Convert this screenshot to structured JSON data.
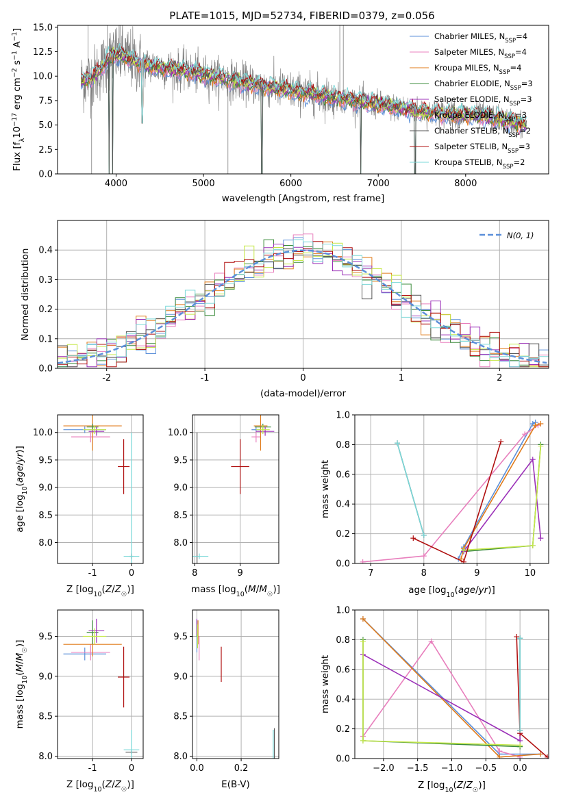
{
  "figure_title": "PLATE=1015, MJD=52734, FIBERID=0379, z=0.056",
  "colors": {
    "chabrier_miles": "#5b8fd9",
    "salpeter_miles": "#e87fbd",
    "kroupa_miles": "#e07b1a",
    "chabrier_elodie": "#3c8c3c",
    "salpeter_elodie": "#9b30b8",
    "kroupa_elodie": "#c6e84a",
    "chabrier_stelib": "#555555",
    "salpeter_stelib": "#b01010",
    "kroupa_stelib": "#7ad8d8",
    "data": "#7f7f7f",
    "normal": "#5b8fd9",
    "grid": "#b0b0b0"
  },
  "chart_data": [
    {
      "id": "spectrum",
      "type": "line",
      "xlabel": "wavelength [Angstrom, rest frame]",
      "ylabel": "Flux [f_λ 10^-17 erg cm^-2 s^-1 A^-1]",
      "xlim": [
        3330,
        8950
      ],
      "ylim": [
        0,
        15.2
      ],
      "xticks": [
        4000,
        5000,
        6000,
        7000,
        8000
      ],
      "yticks": [
        0.0,
        2.5,
        5.0,
        7.5,
        10.0,
        12.5,
        15.0
      ],
      "grid": false,
      "legend_position": "top-right",
      "legend": [
        {
          "main": "Chabrier MILES, N",
          "sub": "SSP",
          "tail": "=4",
          "color_key": "chabrier_miles"
        },
        {
          "main": "Salpeter MILES, N",
          "sub": "SSP",
          "tail": "=4",
          "color_key": "salpeter_miles"
        },
        {
          "main": "Kroupa MILES, N",
          "sub": "SSP",
          "tail": "=4",
          "color_key": "kroupa_miles"
        },
        {
          "main": "Chabrier ELODIE, N",
          "sub": "SSP",
          "tail": "=3",
          "color_key": "chabrier_elodie"
        },
        {
          "main": "Salpeter ELODIE, N",
          "sub": "SSP",
          "tail": "=3",
          "color_key": "salpeter_elodie"
        },
        {
          "main": "Kroupa ELODIE, N",
          "sub": "SSP",
          "tail": "=3",
          "color_key": "kroupa_elodie"
        },
        {
          "main": "Chabrier STELIB, N",
          "sub": "SSP",
          "tail": "=2",
          "color_key": "chabrier_stelib"
        },
        {
          "main": "Salpeter STELIB, N",
          "sub": "SSP",
          "tail": "=3",
          "color_key": "salpeter_stelib"
        },
        {
          "main": "Kroupa STELIB, N",
          "sub": "SSP",
          "tail": "=2",
          "color_key": "kroupa_stelib"
        }
      ],
      "continuum": [
        [
          3600,
          9.4
        ],
        [
          3750,
          10.0
        ],
        [
          3850,
          11.0
        ],
        [
          3950,
          12.2
        ],
        [
          4100,
          12.0
        ],
        [
          4300,
          11.2
        ],
        [
          4500,
          10.9
        ],
        [
          4800,
          10.5
        ],
        [
          5200,
          9.8
        ],
        [
          5600,
          9.1
        ],
        [
          6000,
          8.5
        ],
        [
          6500,
          7.8
        ],
        [
          7000,
          7.1
        ],
        [
          7400,
          6.5
        ],
        [
          7800,
          6.1
        ],
        [
          8200,
          5.9
        ],
        [
          8700,
          5.0
        ]
      ],
      "data_x_range": [
        3600,
        8650
      ],
      "model_x_range": [
        3600,
        8700
      ],
      "data_spikes": [
        [
          3680,
          15.2
        ],
        [
          3720,
          0.0
        ],
        [
          3900,
          15.2
        ],
        [
          4050,
          15.2
        ],
        [
          5280,
          0.0
        ],
        [
          6560,
          15.2
        ],
        [
          6600,
          15.2
        ],
        [
          7430,
          0.0
        ]
      ],
      "model_dips": [
        [
          3920,
          0.0
        ],
        [
          3960,
          0.0
        ],
        [
          4300,
          5.2
        ],
        [
          5670,
          0.0
        ],
        [
          6800,
          0.0
        ],
        [
          7420,
          0.0
        ]
      ]
    },
    {
      "id": "residual-histogram",
      "type": "line",
      "xlabel": "(data-model)/error",
      "ylabel": "Normed distribution",
      "xlim": [
        -2.5,
        2.5
      ],
      "ylim": [
        0,
        0.5
      ],
      "xticks": [
        -2,
        -1,
        0,
        1,
        2
      ],
      "yticks": [
        0.0,
        0.1,
        0.2,
        0.3,
        0.4
      ],
      "grid": true,
      "legend_position": "top-right",
      "normal_label": "N(0, 1)",
      "normal": {
        "mean": 0,
        "sigma": 1
      },
      "bin_width": 0.1,
      "histogram_note": "nine step histograms that scatter around the N(0,1) curve"
    },
    {
      "id": "age-vs-Z",
      "type": "scatter",
      "xlabel": "Z [log10(Z/Z☉)]",
      "ylabel": "age [log10(age/yr)]",
      "xlim": [
        -1.9,
        0.3
      ],
      "ylim": [
        7.62,
        10.32
      ],
      "xticks": [
        -1,
        0
      ],
      "yticks": [
        8.0,
        8.5,
        9.0,
        9.5,
        10.0
      ],
      "grid": true,
      "points": [
        {
          "key": "chabrier_miles",
          "x": -1.2,
          "y": 10.05,
          "xerr": 0.55,
          "yerr": 0.06
        },
        {
          "key": "salpeter_miles",
          "x": -1.05,
          "y": 9.92,
          "xerr": 0.5,
          "yerr": 0.1
        },
        {
          "key": "kroupa_miles",
          "x": -1.0,
          "y": 10.12,
          "xerr": 0.75,
          "yerr": 0.45
        },
        {
          "key": "chabrier_elodie",
          "x": -1.0,
          "y": 10.1,
          "xerr": 0.15,
          "yerr": 0.06
        },
        {
          "key": "salpeter_elodie",
          "x": -0.9,
          "y": 10.02,
          "xerr": 0.2,
          "yerr": 0.08
        },
        {
          "key": "kroupa_elodie",
          "x": -0.95,
          "y": 10.05,
          "xerr": 0.3,
          "yerr": 0.08
        },
        {
          "key": "chabrier_stelib",
          "x": 0.0,
          "y": 7.75,
          "xerr": 0.05,
          "yerr": 0.05
        },
        {
          "key": "salpeter_stelib",
          "x": -0.2,
          "y": 9.38,
          "xerr": 0.15,
          "yerr": 0.5
        },
        {
          "key": "kroupa_stelib",
          "x": 0.0,
          "y": 7.75,
          "xerr": 0.2,
          "yerr": 2.25
        }
      ]
    },
    {
      "id": "age-vs-mass",
      "type": "scatter",
      "xlabel": "mass [log10(M/M☉)]",
      "ylabel": "",
      "xlim": [
        7.95,
        9.85
      ],
      "ylim": [
        7.62,
        10.32
      ],
      "xticks": [
        8,
        9
      ],
      "yticks": [
        8.0,
        8.5,
        9.0,
        9.5,
        10.0
      ],
      "grid": true,
      "points": [
        {
          "key": "chabrier_miles",
          "x": 9.35,
          "y": 10.05,
          "xerr": 0.1,
          "yerr": 0.06
        },
        {
          "key": "salpeter_miles",
          "x": 9.35,
          "y": 9.92,
          "xerr": 0.1,
          "yerr": 0.1
        },
        {
          "key": "kroupa_miles",
          "x": 9.45,
          "y": 10.12,
          "xerr": 0.15,
          "yerr": 0.45
        },
        {
          "key": "chabrier_elodie",
          "x": 9.5,
          "y": 10.1,
          "xerr": 0.18,
          "yerr": 0.06
        },
        {
          "key": "salpeter_elodie",
          "x": 9.55,
          "y": 10.02,
          "xerr": 0.2,
          "yerr": 0.08
        },
        {
          "key": "kroupa_elodie",
          "x": 9.5,
          "y": 10.05,
          "xerr": 0.15,
          "yerr": 0.08
        },
        {
          "key": "chabrier_stelib",
          "x": 8.05,
          "y": 7.75,
          "xerr": 0.03,
          "yerr": 2.25
        },
        {
          "key": "salpeter_stelib",
          "x": 9.0,
          "y": 9.38,
          "xerr": 0.2,
          "yerr": 0.5
        },
        {
          "key": "kroupa_stelib",
          "x": 8.1,
          "y": 7.75,
          "xerr": 0.2,
          "yerr": 0.05
        }
      ]
    },
    {
      "id": "mass-weight-vs-age",
      "type": "line",
      "xlabel": "age [log10(age/yr)]",
      "ylabel": "mass weight",
      "xlim": [
        6.7,
        10.35
      ],
      "ylim": [
        0,
        1.0
      ],
      "xticks": [
        7,
        8,
        9,
        10
      ],
      "yticks": [
        0.0,
        0.2,
        0.4,
        0.6,
        0.8,
        1.0
      ],
      "grid": true,
      "series": [
        {
          "key": "chabrier_miles",
          "x": [
            8.65,
            8.75,
            10.05,
            10.1
          ],
          "y": [
            0.03,
            0.11,
            0.94,
            0.95
          ]
        },
        {
          "key": "salpeter_miles",
          "x": [
            6.85,
            8.0,
            9.9,
            10.15
          ],
          "y": [
            0.01,
            0.05,
            0.87,
            0.93
          ]
        },
        {
          "key": "kroupa_miles",
          "x": [
            8.7,
            8.75,
            10.1,
            10.2
          ],
          "y": [
            0.03,
            0.1,
            0.93,
            0.94
          ]
        },
        {
          "key": "chabrier_elodie",
          "x": [
            8.75,
            10.05,
            10.2
          ],
          "y": [
            0.08,
            0.12,
            0.8
          ]
        },
        {
          "key": "salpeter_elodie",
          "x": [
            8.75,
            10.05,
            10.2
          ],
          "y": [
            0.08,
            0.7,
            0.17
          ]
        },
        {
          "key": "kroupa_elodie",
          "x": [
            8.75,
            10.05,
            10.2
          ],
          "y": [
            0.09,
            0.12,
            0.79
          ]
        },
        {
          "key": "chabrier_stelib",
          "x": [
            7.5,
            8.0
          ],
          "y": [
            0.81,
            0.19
          ]
        },
        {
          "key": "salpeter_stelib",
          "x": [
            7.8,
            8.75,
            9.45
          ],
          "y": [
            0.17,
            0.01,
            0.82
          ]
        },
        {
          "key": "kroupa_stelib",
          "x": [
            7.5,
            8.0
          ],
          "y": [
            0.81,
            0.19
          ]
        }
      ]
    },
    {
      "id": "mass-vs-Z",
      "type": "scatter",
      "xlabel": "Z [log10(Z/Z☉)]",
      "ylabel": "mass [log10(M/M☉)]",
      "xlim": [
        -1.9,
        0.3
      ],
      "ylim": [
        7.97,
        9.83
      ],
      "xticks": [
        -1,
        0
      ],
      "yticks": [
        8.0,
        8.5,
        9.0,
        9.5
      ],
      "grid": true,
      "points": [
        {
          "key": "chabrier_miles",
          "x": -1.2,
          "y": 9.28,
          "xerr": 0.55,
          "yerr": 0.08
        },
        {
          "key": "salpeter_miles",
          "x": -1.05,
          "y": 9.3,
          "xerr": 0.5,
          "yerr": 0.1
        },
        {
          "key": "kroupa_miles",
          "x": -1.0,
          "y": 9.4,
          "xerr": 0.75,
          "yerr": 0.15
        },
        {
          "key": "chabrier_elodie",
          "x": -1.0,
          "y": 9.55,
          "xerr": 0.15,
          "yerr": 0.15
        },
        {
          "key": "salpeter_elodie",
          "x": -0.9,
          "y": 9.57,
          "xerr": 0.2,
          "yerr": 0.15
        },
        {
          "key": "kroupa_elodie",
          "x": -0.95,
          "y": 9.5,
          "xerr": 0.3,
          "yerr": 0.1
        },
        {
          "key": "chabrier_stelib",
          "x": 0.0,
          "y": 8.05,
          "xerr": 0.15,
          "yerr": 0.02
        },
        {
          "key": "salpeter_stelib",
          "x": -0.2,
          "y": 8.99,
          "xerr": 0.15,
          "yerr": 0.38
        },
        {
          "key": "kroupa_stelib",
          "x": 0.0,
          "y": 8.08,
          "xerr": 0.2,
          "yerr": 0.25
        }
      ]
    },
    {
      "id": "mass-vs-EBV",
      "type": "scatter",
      "xlabel": "E(B-V)",
      "ylabel": "",
      "xlim": [
        -0.02,
        0.37
      ],
      "ylim": [
        7.97,
        9.83
      ],
      "xticks": [
        0.0,
        0.2
      ],
      "yticks": [
        8.0,
        8.5,
        9.0,
        9.5
      ],
      "grid": true,
      "points": [
        {
          "key": "chabrier_miles",
          "x": 0.0,
          "y": 9.5,
          "xerr": 0.0,
          "yerr": 0.2
        },
        {
          "key": "salpeter_miles",
          "x": 0.01,
          "y": 9.35,
          "xerr": 0.0,
          "yerr": 0.15
        },
        {
          "key": "kroupa_miles",
          "x": 0.005,
          "y": 9.55,
          "xerr": 0.0,
          "yerr": 0.15
        },
        {
          "key": "chabrier_elodie",
          "x": 0.0,
          "y": 9.6,
          "xerr": 0.0,
          "yerr": 0.1
        },
        {
          "key": "salpeter_elodie",
          "x": 0.0,
          "y": 9.62,
          "xerr": 0.0,
          "yerr": 0.1
        },
        {
          "key": "kroupa_elodie",
          "x": 0.003,
          "y": 9.5,
          "xerr": 0.0,
          "yerr": 0.15
        },
        {
          "key": "chabrier_stelib",
          "x": 0.35,
          "y": 8.05,
          "xerr": 0.0,
          "yerr": 0.3
        },
        {
          "key": "salpeter_stelib",
          "x": 0.11,
          "y": 9.15,
          "xerr": 0.0,
          "yerr": 0.22
        },
        {
          "key": "kroupa_stelib",
          "x": 0.345,
          "y": 8.08,
          "xerr": 0.0,
          "yerr": 0.25
        }
      ]
    },
    {
      "id": "mass-weight-vs-Z",
      "type": "line",
      "xlabel": "Z [log10(Z/Z☉)]",
      "ylabel": "mass weight",
      "xlim": [
        -2.42,
        0.42
      ],
      "ylim": [
        0,
        1.0
      ],
      "xticks": [
        -2.0,
        -1.5,
        -1.0,
        -0.5,
        0.0
      ],
      "yticks": [
        0.0,
        0.2,
        0.4,
        0.6,
        0.8,
        1.0
      ],
      "grid": true,
      "series": [
        {
          "key": "chabrier_miles",
          "x": [
            -2.3,
            -0.3,
            0.3
          ],
          "y": [
            0.94,
            0.03,
            0.03
          ]
        },
        {
          "key": "salpeter_miles",
          "x": [
            -2.3,
            -1.3,
            -0.3,
            0.0
          ],
          "y": [
            0.15,
            0.79,
            0.05,
            0.01
          ]
        },
        {
          "key": "kroupa_miles",
          "x": [
            -2.3,
            -0.3,
            0.3
          ],
          "y": [
            0.94,
            0.01,
            0.03
          ]
        },
        {
          "key": "chabrier_elodie",
          "x": [
            -2.3,
            -2.3,
            0.0
          ],
          "y": [
            0.8,
            0.12,
            0.08
          ]
        },
        {
          "key": "salpeter_elodie",
          "x": [
            -2.3,
            0.0,
            0.0
          ],
          "y": [
            0.7,
            0.12,
            0.17
          ]
        },
        {
          "key": "kroupa_elodie",
          "x": [
            -2.3,
            -2.3,
            0.0
          ],
          "y": [
            0.79,
            0.12,
            0.09
          ]
        },
        {
          "key": "chabrier_stelib",
          "x": [
            0.0,
            0.0
          ],
          "y": [
            0.81,
            0.19
          ]
        },
        {
          "key": "salpeter_stelib",
          "x": [
            -0.05,
            0.0,
            0.4
          ],
          "y": [
            0.82,
            0.17,
            0.01
          ]
        },
        {
          "key": "kroupa_stelib",
          "x": [
            0.0,
            0.0
          ],
          "y": [
            0.81,
            0.19
          ]
        }
      ]
    }
  ]
}
